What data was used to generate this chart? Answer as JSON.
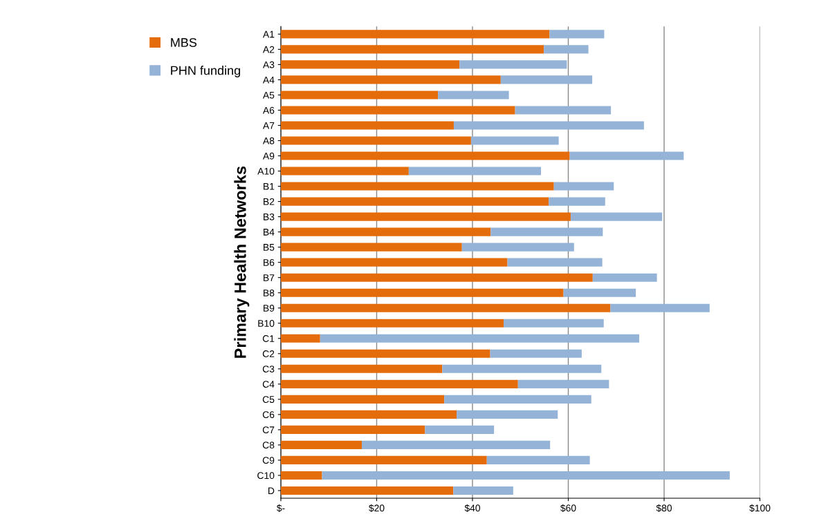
{
  "chart_data": {
    "type": "bar",
    "orientation": "horizontal",
    "stacked": true,
    "ylabel": "Primary Health Networks",
    "categories": [
      "A1",
      "A2",
      "A3",
      "A4",
      "A5",
      "A6",
      "A7",
      "A8",
      "A9",
      "A10",
      "B1",
      "B2",
      "B3",
      "B4",
      "B5",
      "B6",
      "B7",
      "B8",
      "B9",
      "B10",
      "C1",
      "C2",
      "C3",
      "C4",
      "C5",
      "C6",
      "C7",
      "C8",
      "C9",
      "C10",
      "D"
    ],
    "series": [
      {
        "name": "MBS",
        "color": "#e46c0a",
        "values": [
          56.1,
          54.9,
          37.3,
          45.9,
          32.8,
          48.9,
          36.1,
          39.7,
          60.3,
          26.7,
          57.0,
          55.9,
          60.5,
          43.8,
          37.8,
          47.3,
          65.1,
          59.0,
          68.8,
          46.5,
          8.2,
          43.7,
          33.7,
          49.5,
          34.1,
          36.7,
          30.1,
          16.9,
          43.0,
          8.6,
          36.0
        ]
      },
      {
        "name": "PHN funding",
        "color": "#95b3d7",
        "values": [
          11.4,
          9.3,
          22.4,
          19.1,
          14.8,
          20.0,
          39.7,
          18.3,
          23.8,
          27.6,
          12.5,
          11.8,
          19.1,
          23.4,
          23.4,
          19.8,
          13.4,
          15.1,
          20.7,
          20.9,
          66.6,
          19.1,
          33.2,
          19.0,
          30.7,
          21.1,
          14.4,
          39.3,
          21.5,
          85.1,
          12.5
        ]
      }
    ],
    "xlim": [
      0,
      100
    ],
    "xticks": [
      {
        "value": 0,
        "label": "$-"
      },
      {
        "value": 20,
        "label": "$20"
      },
      {
        "value": 40,
        "label": "$40"
      },
      {
        "value": 60,
        "label": "$60"
      },
      {
        "value": 80,
        "label": "$80"
      },
      {
        "value": 100,
        "label": "$100"
      }
    ],
    "grid": "x",
    "legend": "left"
  }
}
